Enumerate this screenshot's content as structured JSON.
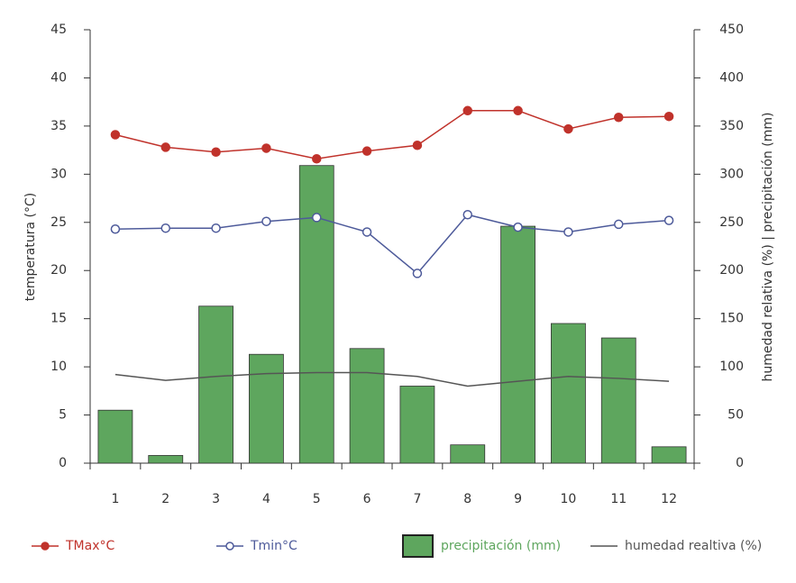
{
  "chart_data": {
    "type": "bar",
    "y_label": "temperatura (°C)",
    "y2_label": "humedad relativa (%) | precipitación (mm)",
    "categories": [
      "1",
      "2",
      "3",
      "4",
      "5",
      "6",
      "7",
      "8",
      "9",
      "10",
      "11",
      "12"
    ],
    "ylim": [
      0,
      45
    ],
    "yticks": [
      0,
      5,
      10,
      15,
      20,
      25,
      30,
      35,
      40,
      45
    ],
    "y2lim": [
      0,
      450
    ],
    "y2ticks": [
      0,
      50,
      100,
      150,
      200,
      250,
      300,
      350,
      400,
      450
    ],
    "series": [
      {
        "name": "precipitación (mm)",
        "type": "bar",
        "axis": "y2",
        "color": "#5ea65e",
        "values": [
          55,
          8,
          163,
          113,
          309,
          119,
          80,
          19,
          246,
          145,
          130,
          17
        ]
      },
      {
        "name": "humedad realtiva (%)",
        "type": "line",
        "axis": "y2",
        "color": "#555555",
        "values": [
          92,
          86,
          90,
          93,
          94,
          94,
          90,
          80,
          85,
          90,
          88,
          85
        ]
      },
      {
        "name": "TMax°C",
        "type": "line",
        "marker": "filled",
        "color": "#c0322b",
        "values": [
          34.1,
          32.8,
          32.3,
          32.7,
          31.6,
          32.4,
          33.0,
          36.6,
          36.6,
          34.7,
          35.9,
          36.0
        ]
      },
      {
        "name": "Tmin°C",
        "type": "line",
        "marker": "open",
        "color": "#4d5a9a",
        "values": [
          24.3,
          24.4,
          24.4,
          25.1,
          25.5,
          24.0,
          19.7,
          25.8,
          24.5,
          24.0,
          24.8,
          25.2
        ]
      }
    ]
  }
}
